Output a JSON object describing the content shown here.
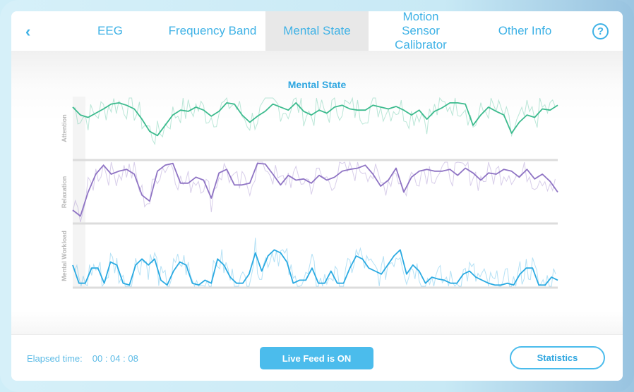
{
  "nav": {
    "back_icon": "chevron-left-icon",
    "tabs": [
      {
        "label": "EEG",
        "active": false
      },
      {
        "label": "Frequency Band",
        "active": false
      },
      {
        "label": "Mental State",
        "active": true
      },
      {
        "label": "Motion Sensor Calibrator",
        "active": false
      },
      {
        "label": "Other Info",
        "active": false
      }
    ],
    "help_icon": "help-circle-icon",
    "help_glyph": "?"
  },
  "main": {
    "title": "Mental State"
  },
  "colors": {
    "accent": "#3fb2e6",
    "attention": "#3dbb8e",
    "relaxation": "#8f74c4",
    "workload": "#2aaae2"
  },
  "chart_data": {
    "type": "line",
    "panels": [
      {
        "ylabel": "Attention",
        "color": "#3dbb8e",
        "values": [
          0.85,
          0.72,
          0.68,
          0.75,
          0.82,
          0.9,
          0.92,
          0.88,
          0.82,
          0.65,
          0.45,
          0.38,
          0.55,
          0.72,
          0.8,
          0.78,
          0.85,
          0.8,
          0.7,
          0.78,
          0.92,
          0.9,
          0.72,
          0.6,
          0.7,
          0.78,
          0.9,
          0.85,
          0.8,
          0.92,
          0.78,
          0.72,
          0.8,
          0.75,
          0.85,
          0.88,
          0.82,
          0.8,
          0.8,
          0.88,
          0.85,
          0.82,
          0.86,
          0.8,
          0.72,
          0.8,
          0.65,
          0.78,
          0.84,
          0.92,
          0.92,
          0.9,
          0.55,
          0.72,
          0.85,
          0.78,
          0.72,
          0.42,
          0.6,
          0.72,
          0.68,
          0.82,
          0.8,
          0.88
        ]
      },
      {
        "ylabel": "Relaxation",
        "color": "#8f74c4",
        "values": [
          0.2,
          0.1,
          0.5,
          0.8,
          0.95,
          0.8,
          0.85,
          0.88,
          0.8,
          0.45,
          0.35,
          0.85,
          0.95,
          0.98,
          0.65,
          0.65,
          0.75,
          0.7,
          0.4,
          0.82,
          0.88,
          0.62,
          0.62,
          0.65,
          0.98,
          0.97,
          0.8,
          0.62,
          0.78,
          0.7,
          0.72,
          0.65,
          0.78,
          0.7,
          0.75,
          0.85,
          0.88,
          0.9,
          0.95,
          0.8,
          0.6,
          0.7,
          0.9,
          0.5,
          0.75,
          0.85,
          0.88,
          0.85,
          0.85,
          0.88,
          0.78,
          0.9,
          0.82,
          0.7,
          0.82,
          0.8,
          0.88,
          0.85,
          0.75,
          0.88,
          0.72,
          0.8,
          0.68,
          0.5
        ]
      },
      {
        "ylabel": "Mental Workload",
        "color": "#2aaae2",
        "values": [
          0.35,
          0.05,
          0.05,
          0.3,
          0.3,
          0.05,
          0.4,
          0.35,
          0.05,
          0.02,
          0.35,
          0.45,
          0.35,
          0.45,
          0.1,
          0.02,
          0.25,
          0.4,
          0.35,
          0.05,
          0.02,
          0.1,
          0.05,
          0.45,
          0.35,
          0.15,
          0.05,
          0.05,
          0.2,
          0.55,
          0.25,
          0.5,
          0.6,
          0.55,
          0.4,
          0.05,
          0.1,
          0.1,
          0.3,
          0.05,
          0.05,
          0.25,
          0.05,
          0.05,
          0.3,
          0.5,
          0.45,
          0.3,
          0.25,
          0.2,
          0.35,
          0.5,
          0.6,
          0.2,
          0.35,
          0.25,
          0.05,
          0.15,
          0.12,
          0.1,
          0.05,
          0.05,
          0.2,
          0.25,
          0.15,
          0.1,
          0.05,
          0.02,
          0.02,
          0.05,
          0.02,
          0.2,
          0.3,
          0.3,
          0.02,
          0.02,
          0.15,
          0.1
        ]
      }
    ],
    "ylim": [
      0,
      1
    ],
    "grid": false
  },
  "footer": {
    "elapsed_label": "Elapsed time:",
    "elapsed_value": "00 : 04 : 08",
    "live_button": "Live Feed is ON",
    "statistics_button": "Statistics"
  }
}
